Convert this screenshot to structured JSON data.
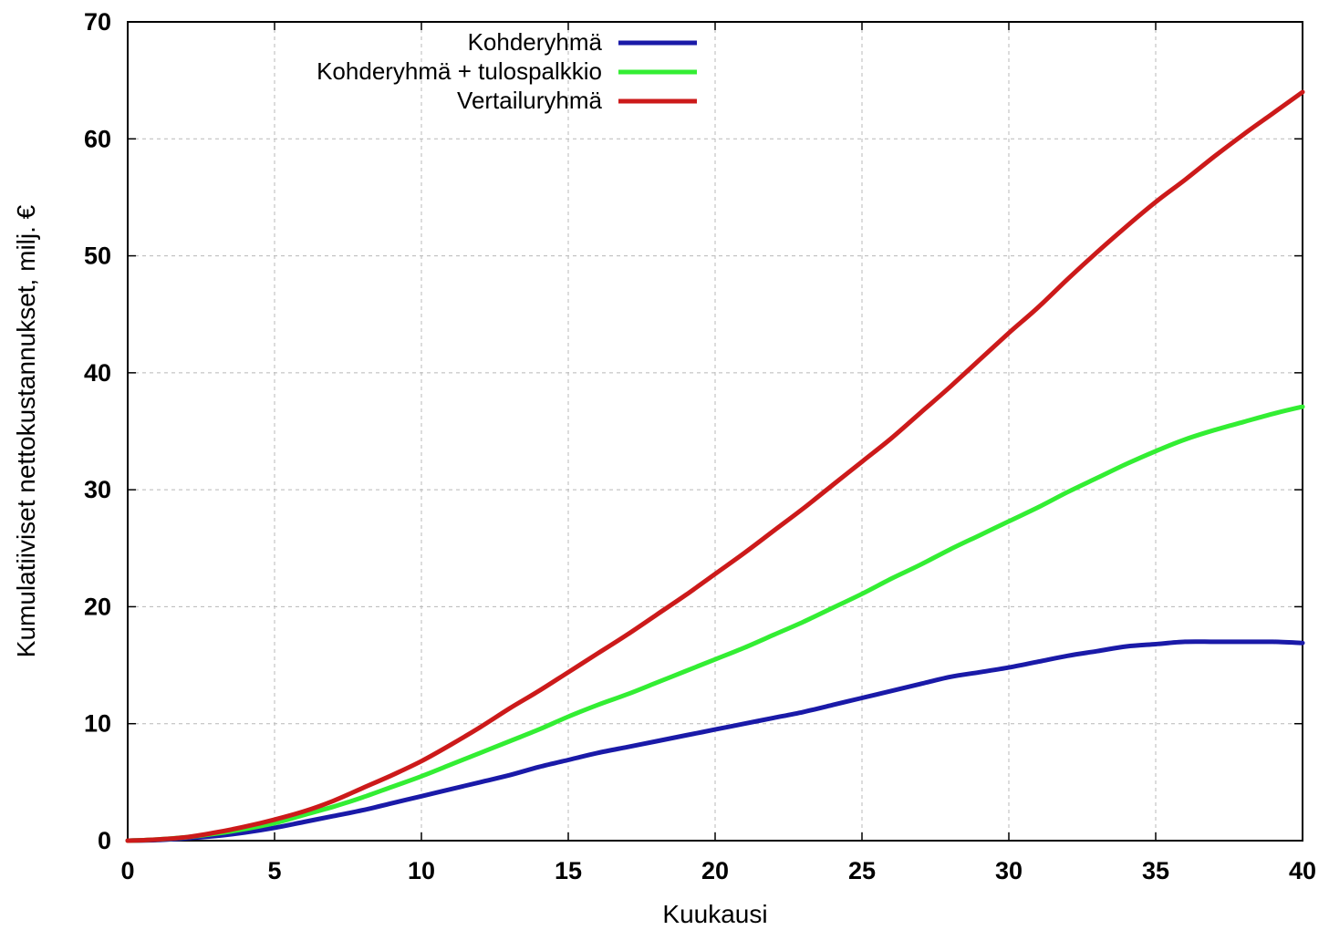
{
  "chart_data": {
    "type": "line",
    "title": "",
    "xlabel": "Kuukausi",
    "ylabel": "Kumulatiiviset nettokustannukset, milj. €",
    "xlim": [
      0,
      40
    ],
    "ylim": [
      0,
      70
    ],
    "xticks": [
      0,
      5,
      10,
      15,
      20,
      25,
      30,
      35,
      40
    ],
    "yticks": [
      0,
      10,
      20,
      30,
      40,
      50,
      60,
      70
    ],
    "grid": true,
    "legend_position": "top-center",
    "x": [
      0,
      1,
      2,
      3,
      4,
      5,
      6,
      7,
      8,
      9,
      10,
      11,
      12,
      13,
      14,
      15,
      16,
      17,
      18,
      19,
      20,
      21,
      22,
      23,
      24,
      25,
      26,
      27,
      28,
      29,
      30,
      31,
      32,
      33,
      34,
      35,
      36,
      37,
      38,
      39,
      40
    ],
    "series": [
      {
        "name": "Kohderyhmä",
        "color": "#1a1aa8",
        "values": [
          0,
          0.05,
          0.2,
          0.4,
          0.7,
          1.1,
          1.6,
          2.1,
          2.6,
          3.2,
          3.8,
          4.4,
          5.0,
          5.6,
          6.3,
          6.9,
          7.5,
          8.0,
          8.5,
          9.0,
          9.5,
          10.0,
          10.5,
          11.0,
          11.6,
          12.2,
          12.8,
          13.4,
          14.0,
          14.4,
          14.8,
          15.3,
          15.8,
          16.2,
          16.6,
          16.8,
          17.0,
          17.0,
          17.0,
          17.0,
          16.9
        ]
      },
      {
        "name": "Kohderyhmä + tulospalkkio",
        "color": "#33ee33",
        "values": [
          0,
          0.1,
          0.3,
          0.6,
          1.0,
          1.5,
          2.2,
          2.9,
          3.7,
          4.6,
          5.5,
          6.5,
          7.5,
          8.5,
          9.5,
          10.6,
          11.6,
          12.5,
          13.5,
          14.5,
          15.5,
          16.5,
          17.6,
          18.7,
          19.9,
          21.1,
          22.4,
          23.6,
          24.9,
          26.1,
          27.3,
          28.5,
          29.8,
          31.0,
          32.2,
          33.3,
          34.3,
          35.1,
          35.8,
          36.5,
          37.1
        ]
      },
      {
        "name": "Vertailuryhmä",
        "color": "#cc1a1a",
        "values": [
          0,
          0.1,
          0.3,
          0.7,
          1.2,
          1.8,
          2.5,
          3.4,
          4.5,
          5.6,
          6.8,
          8.2,
          9.7,
          11.3,
          12.8,
          14.4,
          16.0,
          17.6,
          19.3,
          21.0,
          22.8,
          24.6,
          26.5,
          28.4,
          30.4,
          32.4,
          34.4,
          36.6,
          38.8,
          41.1,
          43.4,
          45.6,
          48.0,
          50.3,
          52.5,
          54.6,
          56.5,
          58.5,
          60.4,
          62.2,
          64.0
        ]
      }
    ]
  }
}
